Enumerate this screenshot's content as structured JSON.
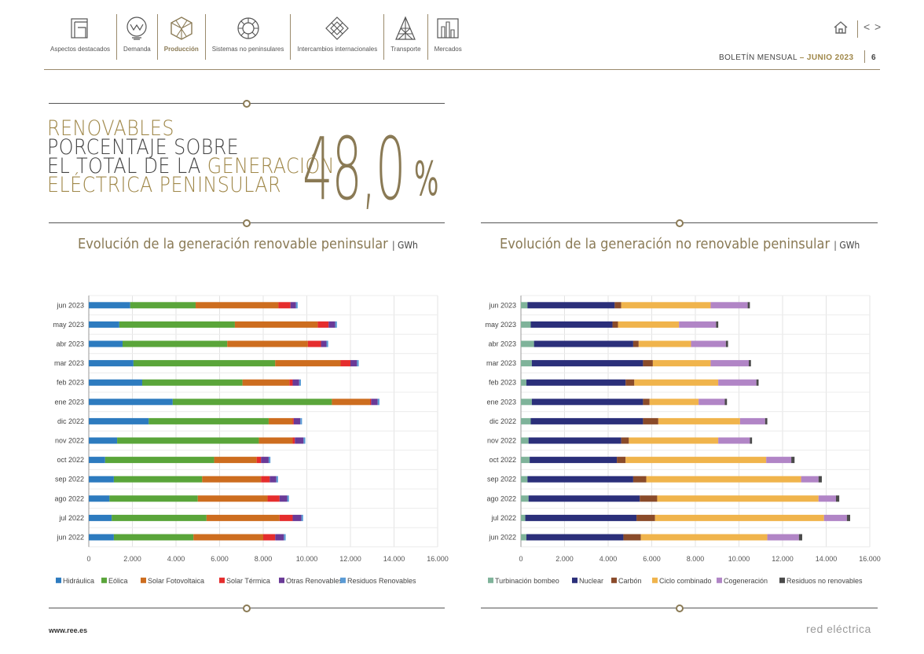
{
  "nav": {
    "items": [
      {
        "label": "Aspectos destacados",
        "icon": "highlights-icon"
      },
      {
        "label": "Demanda",
        "icon": "demand-icon"
      },
      {
        "label": "Producción",
        "icon": "production-icon"
      },
      {
        "label": "Sistemas no peninsulares",
        "icon": "non-peninsular-icon"
      },
      {
        "label": "Intercambios internacionales",
        "icon": "exchanges-icon"
      },
      {
        "label": "Transporte",
        "icon": "transport-icon"
      },
      {
        "label": "Mercados",
        "icon": "markets-icon"
      }
    ],
    "active_index": 2
  },
  "header": {
    "bulletin": "BOLETÍN MENSUAL",
    "separator": "–",
    "month": "JUNIO 2023",
    "page": "6"
  },
  "headline": {
    "line1": "RENOVABLES",
    "line2": "PORCENTAJE SOBRE",
    "line3a": "EL TOTAL DE LA ",
    "line3b": "GENERACIÓN",
    "line4": "ELÉCTRICA PENINSULAR",
    "value": "48,0",
    "unit": "%"
  },
  "footer": {
    "url": "www.ree.es",
    "logo": "red eléctrica"
  },
  "colors": {
    "accent": "#8a7a55",
    "hidraulica": "#2d7bbf",
    "eolica": "#5aa53a",
    "solar_fv": "#cd6d1f",
    "solar_termica": "#e52d2d",
    "otras_renovables": "#6a3a97",
    "residuos_renovables": "#5b9bd5",
    "turbinacion": "#7fb39a",
    "nuclear": "#2b2f7a",
    "carbon": "#8a4b2a",
    "ciclo": "#f0b44c",
    "cogeneracion": "#b185c6",
    "residuos_no_renovables": "#4a4a4a"
  },
  "chart_data": [
    {
      "type": "bar",
      "orientation": "horizontal",
      "stacked": true,
      "title": "Evolución de la generación renovable peninsular",
      "unit": "GWh",
      "categories": [
        "jun 2023",
        "may 2023",
        "abr 2023",
        "mar 2023",
        "feb 2023",
        "ene 2023",
        "dic 2022",
        "nov 2022",
        "oct 2022",
        "sep 2022",
        "ago 2022",
        "jul 2022",
        "jun 2022"
      ],
      "xlim": [
        0,
        16000
      ],
      "xticks": [
        "0",
        "2.000",
        "4.000",
        "6.000",
        "8.000",
        "10.000",
        "12.000",
        "14.000",
        "16.000"
      ],
      "grid": true,
      "legend": "bottom",
      "series": [
        {
          "name": "Hidráulica",
          "color": "#2d7bbf",
          "values": [
            1900,
            1400,
            1550,
            2050,
            2450,
            3850,
            2750,
            1300,
            750,
            1150,
            950,
            1050,
            1150
          ]
        },
        {
          "name": "Eólica",
          "color": "#5aa53a",
          "values": [
            3000,
            5300,
            4800,
            6500,
            4600,
            7300,
            5500,
            6500,
            5000,
            4050,
            4050,
            4350,
            3650
          ]
        },
        {
          "name": "Solar Fotovoltaica",
          "color": "#cd6d1f",
          "values": [
            3800,
            3800,
            3700,
            3000,
            2150,
            1750,
            1100,
            1550,
            1950,
            2700,
            3200,
            3350,
            3200
          ]
        },
        {
          "name": "Solar Térmica",
          "color": "#e52d2d",
          "values": [
            550,
            500,
            600,
            450,
            150,
            50,
            50,
            100,
            200,
            400,
            550,
            600,
            550
          ]
        },
        {
          "name": "Otras Renovables",
          "color": "#6a3a97",
          "values": [
            250,
            300,
            250,
            300,
            300,
            300,
            300,
            400,
            350,
            300,
            350,
            400,
            400
          ]
        },
        {
          "name": "Residuos Renovables",
          "color": "#5b9bd5",
          "values": [
            80,
            80,
            80,
            80,
            80,
            80,
            80,
            80,
            80,
            80,
            80,
            80,
            80
          ]
        }
      ]
    },
    {
      "type": "bar",
      "orientation": "horizontal",
      "stacked": true,
      "title": "Evolución de la generación no renovable peninsular",
      "unit": "GWh",
      "categories": [
        "jun 2023",
        "may 2023",
        "abr 2023",
        "mar 2023",
        "feb 2023",
        "ene 2023",
        "dic 2022",
        "nov 2022",
        "oct 2022",
        "sep 2022",
        "ago 2022",
        "jul 2022",
        "jun 2022"
      ],
      "xlim": [
        0,
        16000
      ],
      "xticks": [
        "0",
        "2.000",
        "4.000",
        "6.000",
        "8.000",
        "10.000",
        "12.000",
        "14.000",
        "16.000"
      ],
      "grid": true,
      "legend": "bottom",
      "series": [
        {
          "name": "Turbinación bombeo",
          "color": "#7fb39a",
          "values": [
            300,
            450,
            600,
            500,
            250,
            500,
            450,
            350,
            400,
            300,
            350,
            200,
            250
          ]
        },
        {
          "name": "Nuclear",
          "color": "#2b2f7a",
          "values": [
            4000,
            3750,
            4550,
            5100,
            4550,
            5100,
            5150,
            4250,
            4000,
            4850,
            5100,
            5100,
            4450
          ]
        },
        {
          "name": "Carbón",
          "color": "#8a4b2a",
          "values": [
            300,
            250,
            250,
            450,
            400,
            300,
            700,
            350,
            400,
            600,
            800,
            850,
            800
          ]
        },
        {
          "name": "Ciclo combinado",
          "color": "#f0b44c",
          "values": [
            4100,
            2800,
            2400,
            2650,
            3850,
            2250,
            3750,
            4100,
            6450,
            7100,
            7400,
            7750,
            5800
          ]
        },
        {
          "name": "Cogeneración",
          "color": "#b185c6",
          "values": [
            1700,
            1700,
            1600,
            1750,
            1750,
            1200,
            1150,
            1450,
            1150,
            800,
            800,
            1050,
            1450
          ]
        },
        {
          "name": "Residuos no renovables",
          "color": "#4a4a4a",
          "values": [
            100,
            100,
            100,
            100,
            100,
            100,
            100,
            100,
            150,
            150,
            150,
            150,
            150
          ]
        }
      ]
    }
  ]
}
